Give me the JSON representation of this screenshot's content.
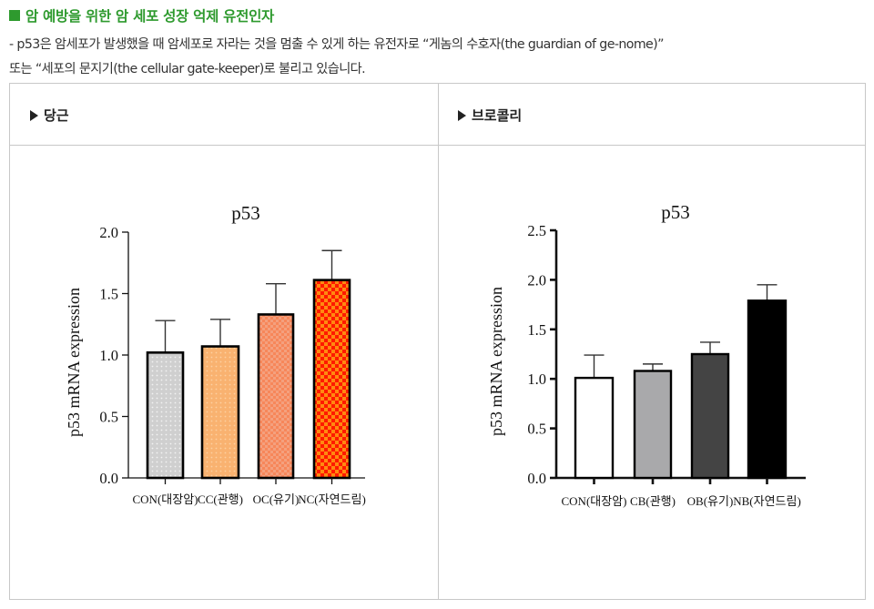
{
  "heading": "암 예방을 위한 암 세포 성장 억제 유전인자",
  "paragraph": {
    "line1": "- p53은 암세포가 발생했을 때 암세포로 자라는 것을 멈출 수 있게 하는 유전자로 “게놈의 수호자(the guardian of ge-nome)”",
    "line2": "또는 “세포의 문지기(the cellular gate-keeper)로 불리고 있습니다."
  },
  "table": {
    "headers": [
      "당근",
      "브로콜리"
    ]
  },
  "chart_data": [
    {
      "type": "bar",
      "panel": "당근",
      "title": "p53",
      "xlabel": "",
      "ylabel": "p53 mRNA expression",
      "ylim": [
        0,
        2.0
      ],
      "yticks": [
        "0.0",
        "0.5",
        "1.0",
        "1.5",
        "2.0"
      ],
      "categories": [
        "CON(대장암)",
        "CC(관행)",
        "OC(유기)",
        "NC(자연드림)"
      ],
      "values": [
        1.02,
        1.07,
        1.33,
        1.61
      ],
      "error_upper": [
        1.28,
        1.29,
        1.58,
        1.85
      ],
      "colors": [
        "#d4d4d4",
        "#f9b87a",
        "#f58a5e",
        "#ff3300"
      ],
      "grid": false,
      "legend": null
    },
    {
      "type": "bar",
      "panel": "브로콜리",
      "title": "p53",
      "xlabel": "",
      "ylabel": "p53 mRNA expression",
      "ylim": [
        0,
        2.5
      ],
      "yticks": [
        "0.0",
        "0.5",
        "1.0",
        "1.5",
        "2.0",
        "2.5"
      ],
      "categories": [
        "CON(대장암)",
        "CB(관행)",
        "OB(유기)",
        "NB(자연드림)"
      ],
      "values": [
        1.01,
        1.08,
        1.25,
        1.79
      ],
      "error_upper": [
        1.24,
        1.15,
        1.37,
        1.95
      ],
      "colors": [
        "#ffffff",
        "#a9a9ab",
        "#444444",
        "#000000"
      ],
      "grid": false,
      "legend": null
    }
  ]
}
